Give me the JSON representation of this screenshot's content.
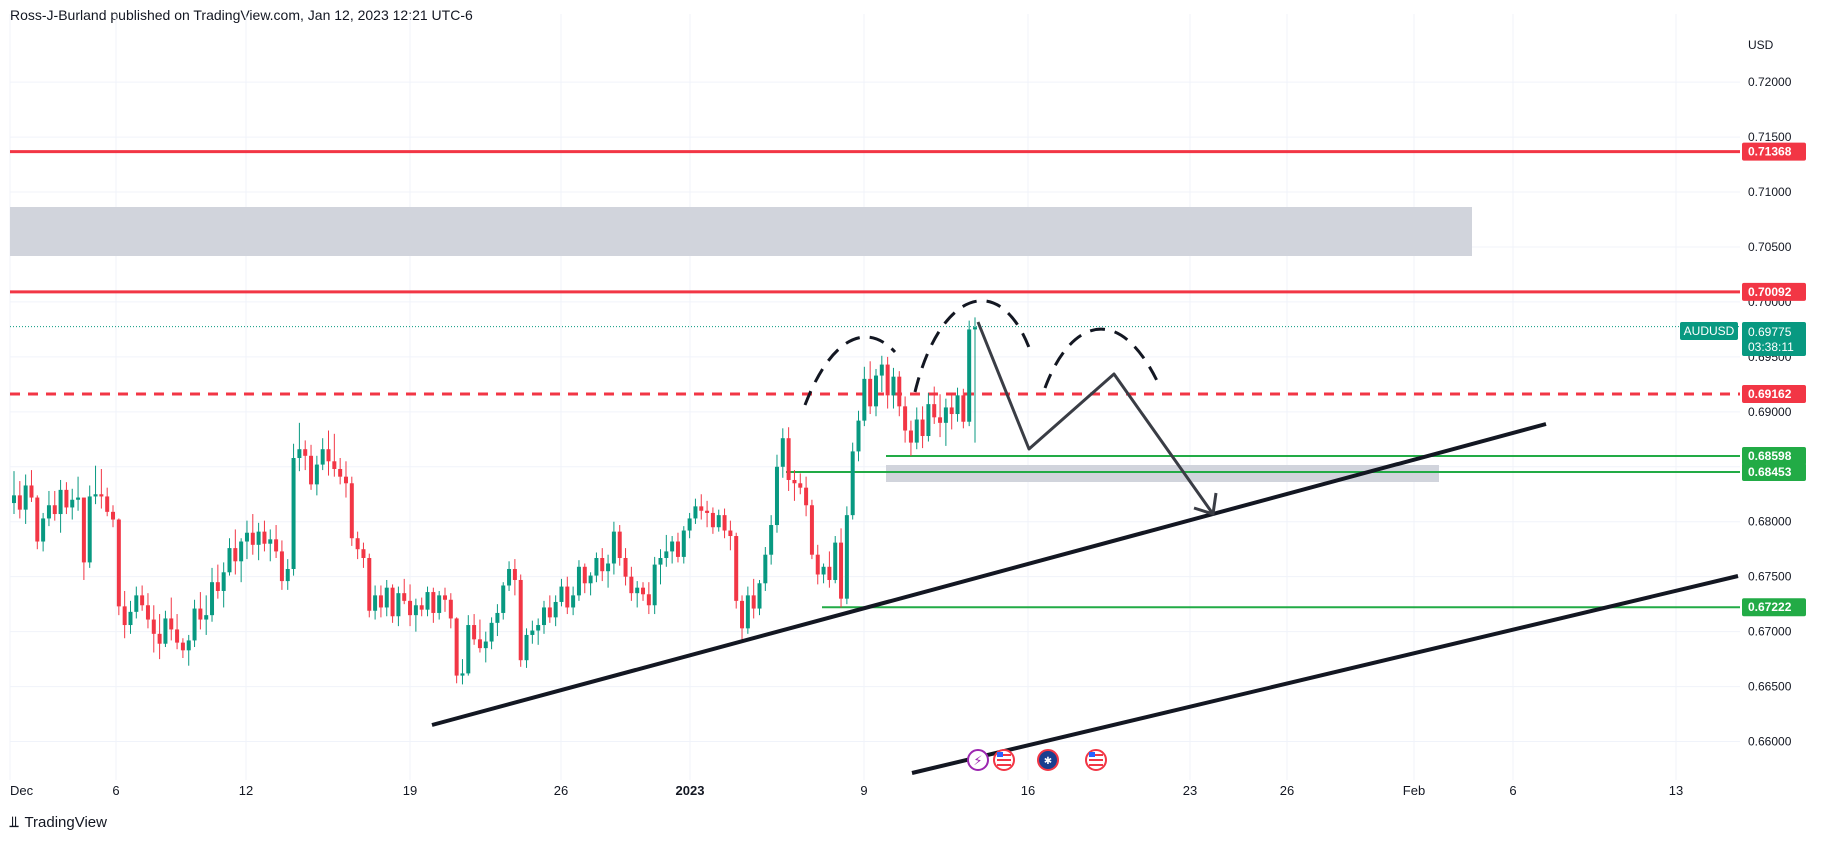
{
  "header": {
    "published_line": "Ross-J-Burland published on TradingView.com, Jan 12, 2023 12:21 UTC-6"
  },
  "footer": {
    "brand": "TradingView",
    "logo_glyph": "⫫"
  },
  "colors": {
    "bull": "#089981",
    "bear": "#f23645",
    "resistance": "#f23645",
    "support": "#22ab46",
    "zone": "#d1d4dc",
    "drawing": "#131722",
    "grid": "#f0f3fa"
  },
  "chart_data": {
    "type": "candlestick",
    "symbol": "AUDUSD",
    "currency": "USD",
    "timeframe_note": "4H candles",
    "x_tick_labels": [
      "Dec",
      "6",
      "12",
      "19",
      "26",
      "2023",
      "9",
      "16",
      "23",
      "26",
      "Feb",
      "6",
      "13"
    ],
    "y_tick_labels": [
      "0.72000",
      "0.71500",
      "0.71000",
      "0.70500",
      "0.70000",
      "0.69500",
      "0.69000",
      "0.68500",
      "0.68000",
      "0.67500",
      "0.67000",
      "0.66500",
      "0.66000"
    ],
    "ylim": [
      0.6565,
      0.7262
    ],
    "last_price": {
      "symbol": "AUDUSD",
      "value": "0.69775",
      "countdown": "03:38:11"
    },
    "horizontal_levels": [
      {
        "label": "0.71368",
        "value": 0.71368,
        "style": "solid",
        "color": "#f23645"
      },
      {
        "label": "0.70092",
        "value": 0.70092,
        "style": "solid",
        "color": "#f23645"
      },
      {
        "label": "0.69162",
        "value": 0.69162,
        "style": "dashed",
        "color": "#f23645"
      },
      {
        "label": "0.68598",
        "value": 0.68598,
        "style": "solid",
        "color": "#22ab46"
      },
      {
        "label": "0.68453",
        "value": 0.68453,
        "style": "solid",
        "color": "#22ab46"
      },
      {
        "label": "0.67222",
        "value": 0.67222,
        "style": "solid",
        "color": "#22ab46"
      }
    ],
    "candles": [
      [
        0.6817,
        0.6846,
        0.6807,
        0.6824
      ],
      [
        0.6824,
        0.6837,
        0.6803,
        0.6811
      ],
      [
        0.6811,
        0.6843,
        0.6798,
        0.6833
      ],
      [
        0.6833,
        0.6847,
        0.6818,
        0.6822
      ],
      [
        0.6822,
        0.6824,
        0.6775,
        0.6782
      ],
      [
        0.6782,
        0.6808,
        0.6773,
        0.6803
      ],
      [
        0.6803,
        0.6828,
        0.6796,
        0.6815
      ],
      [
        0.6815,
        0.6828,
        0.6801,
        0.6807
      ],
      [
        0.6807,
        0.6838,
        0.679,
        0.6829
      ],
      [
        0.6829,
        0.6836,
        0.6807,
        0.6813
      ],
      [
        0.6813,
        0.683,
        0.6802,
        0.682
      ],
      [
        0.682,
        0.6841,
        0.681,
        0.6822
      ],
      [
        0.6822,
        0.6822,
        0.6747,
        0.6763
      ],
      [
        0.6763,
        0.6833,
        0.6758,
        0.6823
      ],
      [
        0.6823,
        0.6851,
        0.6816,
        0.6825
      ],
      [
        0.6825,
        0.6848,
        0.6812,
        0.6823
      ],
      [
        0.6823,
        0.6831,
        0.6805,
        0.6809
      ],
      [
        0.6809,
        0.6815,
        0.6795,
        0.6802
      ],
      [
        0.6802,
        0.6803,
        0.6715,
        0.6723
      ],
      [
        0.6723,
        0.6737,
        0.6694,
        0.6706
      ],
      [
        0.6706,
        0.6728,
        0.6698,
        0.6718
      ],
      [
        0.6718,
        0.6741,
        0.6712,
        0.6733
      ],
      [
        0.6733,
        0.6742,
        0.6719,
        0.6724
      ],
      [
        0.6724,
        0.6735,
        0.6703,
        0.6711
      ],
      [
        0.6711,
        0.6724,
        0.6681,
        0.6698
      ],
      [
        0.6698,
        0.6716,
        0.6675,
        0.6689
      ],
      [
        0.6689,
        0.6719,
        0.6686,
        0.6712
      ],
      [
        0.6712,
        0.6731,
        0.6692,
        0.6702
      ],
      [
        0.6702,
        0.6716,
        0.6684,
        0.669
      ],
      [
        0.669,
        0.6694,
        0.6676,
        0.6683
      ],
      [
        0.6683,
        0.6697,
        0.6669,
        0.6692
      ],
      [
        0.6692,
        0.6729,
        0.6686,
        0.6721
      ],
      [
        0.6721,
        0.6736,
        0.6702,
        0.6711
      ],
      [
        0.6711,
        0.6733,
        0.6697,
        0.6715
      ],
      [
        0.6715,
        0.6758,
        0.6709,
        0.6745
      ],
      [
        0.6745,
        0.6761,
        0.673,
        0.6737
      ],
      [
        0.6737,
        0.6763,
        0.6722,
        0.6754
      ],
      [
        0.6754,
        0.6785,
        0.6751,
        0.6776
      ],
      [
        0.6776,
        0.6793,
        0.6752,
        0.6764
      ],
      [
        0.6764,
        0.6785,
        0.6745,
        0.6782
      ],
      [
        0.6782,
        0.6801,
        0.6766,
        0.679
      ],
      [
        0.679,
        0.6807,
        0.677,
        0.6779
      ],
      [
        0.6779,
        0.6799,
        0.6765,
        0.6791
      ],
      [
        0.6791,
        0.6801,
        0.6773,
        0.678
      ],
      [
        0.678,
        0.6793,
        0.6764,
        0.6784
      ],
      [
        0.6784,
        0.6797,
        0.6767,
        0.6773
      ],
      [
        0.6773,
        0.6783,
        0.6738,
        0.6746
      ],
      [
        0.6746,
        0.6766,
        0.6738,
        0.6757
      ],
      [
        0.6757,
        0.6871,
        0.6751,
        0.6858
      ],
      [
        0.6858,
        0.689,
        0.6846,
        0.6866
      ],
      [
        0.6866,
        0.6874,
        0.6847,
        0.686
      ],
      [
        0.686,
        0.687,
        0.6829,
        0.6834
      ],
      [
        0.6834,
        0.686,
        0.6824,
        0.6852
      ],
      [
        0.6852,
        0.6876,
        0.6847,
        0.6866
      ],
      [
        0.6866,
        0.6883,
        0.6842,
        0.6855
      ],
      [
        0.6855,
        0.688,
        0.6841,
        0.6848
      ],
      [
        0.6848,
        0.6858,
        0.6834,
        0.6841
      ],
      [
        0.6841,
        0.6855,
        0.6822,
        0.6835
      ],
      [
        0.6835,
        0.6841,
        0.6778,
        0.6785
      ],
      [
        0.6785,
        0.6791,
        0.6766,
        0.6775
      ],
      [
        0.6775,
        0.6781,
        0.6758,
        0.6767
      ],
      [
        0.6767,
        0.6771,
        0.6713,
        0.6719
      ],
      [
        0.6719,
        0.6742,
        0.6711,
        0.6733
      ],
      [
        0.6733,
        0.6742,
        0.6713,
        0.6722
      ],
      [
        0.6722,
        0.6747,
        0.6714,
        0.674
      ],
      [
        0.674,
        0.6743,
        0.6708,
        0.6714
      ],
      [
        0.6714,
        0.6741,
        0.6705,
        0.6735
      ],
      [
        0.6735,
        0.6748,
        0.6725,
        0.6728
      ],
      [
        0.6728,
        0.6743,
        0.6705,
        0.6715
      ],
      [
        0.6715,
        0.673,
        0.67,
        0.6724
      ],
      [
        0.6724,
        0.6731,
        0.6714,
        0.672
      ],
      [
        0.672,
        0.6741,
        0.6714,
        0.6736
      ],
      [
        0.6736,
        0.674,
        0.6708,
        0.6717
      ],
      [
        0.6717,
        0.6737,
        0.6711,
        0.6733
      ],
      [
        0.6733,
        0.674,
        0.6718,
        0.6729
      ],
      [
        0.6729,
        0.6735,
        0.6703,
        0.6712
      ],
      [
        0.6712,
        0.6713,
        0.6653,
        0.666
      ],
      [
        0.666,
        0.6675,
        0.6652,
        0.6662
      ],
      [
        0.6662,
        0.6715,
        0.666,
        0.6706
      ],
      [
        0.6706,
        0.6716,
        0.6688,
        0.6693
      ],
      [
        0.6693,
        0.6711,
        0.6681,
        0.6685
      ],
      [
        0.6685,
        0.67,
        0.6672,
        0.6691
      ],
      [
        0.6691,
        0.6713,
        0.6684,
        0.6708
      ],
      [
        0.6708,
        0.6725,
        0.6696,
        0.6717
      ],
      [
        0.6717,
        0.6745,
        0.6711,
        0.6742
      ],
      [
        0.6742,
        0.6764,
        0.6737,
        0.6757
      ],
      [
        0.6757,
        0.6766,
        0.6733,
        0.6747
      ],
      [
        0.6747,
        0.6752,
        0.6668,
        0.6674
      ],
      [
        0.6674,
        0.6703,
        0.6667,
        0.6697
      ],
      [
        0.6697,
        0.671,
        0.6689,
        0.6701
      ],
      [
        0.6701,
        0.6712,
        0.6688,
        0.6706
      ],
      [
        0.6706,
        0.6728,
        0.6698,
        0.6722
      ],
      [
        0.6722,
        0.6733,
        0.6708,
        0.6713
      ],
      [
        0.6713,
        0.6733,
        0.6705,
        0.6727
      ],
      [
        0.6727,
        0.6748,
        0.6723,
        0.6741
      ],
      [
        0.6741,
        0.675,
        0.6716,
        0.6722
      ],
      [
        0.6722,
        0.6741,
        0.6715,
        0.6733
      ],
      [
        0.6733,
        0.6765,
        0.6728,
        0.6759
      ],
      [
        0.6759,
        0.6762,
        0.6735,
        0.6744
      ],
      [
        0.6744,
        0.6754,
        0.6733,
        0.6751
      ],
      [
        0.6751,
        0.6772,
        0.6745,
        0.6767
      ],
      [
        0.6767,
        0.6776,
        0.6746,
        0.6755
      ],
      [
        0.6755,
        0.677,
        0.674,
        0.6762
      ],
      [
        0.6762,
        0.68,
        0.6752,
        0.6791
      ],
      [
        0.6791,
        0.6797,
        0.676,
        0.6767
      ],
      [
        0.6767,
        0.6776,
        0.6742,
        0.675
      ],
      [
        0.675,
        0.6759,
        0.6728,
        0.6735
      ],
      [
        0.6735,
        0.6746,
        0.6722,
        0.674
      ],
      [
        0.674,
        0.6745,
        0.6728,
        0.6734
      ],
      [
        0.6734,
        0.6745,
        0.6716,
        0.6724
      ],
      [
        0.6724,
        0.6768,
        0.6716,
        0.6761
      ],
      [
        0.6761,
        0.6775,
        0.6743,
        0.6767
      ],
      [
        0.6767,
        0.6788,
        0.6759,
        0.6773
      ],
      [
        0.6773,
        0.6787,
        0.6762,
        0.6782
      ],
      [
        0.6782,
        0.679,
        0.6763,
        0.6768
      ],
      [
        0.6768,
        0.6796,
        0.6762,
        0.6792
      ],
      [
        0.6792,
        0.6808,
        0.6785,
        0.6803
      ],
      [
        0.6803,
        0.6821,
        0.6798,
        0.6814
      ],
      [
        0.6814,
        0.6825,
        0.6802,
        0.681
      ],
      [
        0.681,
        0.6819,
        0.6795,
        0.6808
      ],
      [
        0.6808,
        0.6813,
        0.6789,
        0.6795
      ],
      [
        0.6795,
        0.6811,
        0.6791,
        0.6806
      ],
      [
        0.6806,
        0.6812,
        0.6785,
        0.6792
      ],
      [
        0.6792,
        0.6801,
        0.6774,
        0.6787
      ],
      [
        0.6787,
        0.679,
        0.6721,
        0.6728
      ],
      [
        0.6728,
        0.6733,
        0.669,
        0.6703
      ],
      [
        0.6703,
        0.6741,
        0.6698,
        0.6733
      ],
      [
        0.6733,
        0.6748,
        0.6712,
        0.6721
      ],
      [
        0.6721,
        0.6747,
        0.6715,
        0.6744
      ],
      [
        0.6744,
        0.6777,
        0.6737,
        0.677
      ],
      [
        0.677,
        0.6806,
        0.6761,
        0.6797
      ],
      [
        0.6797,
        0.6861,
        0.679,
        0.685
      ],
      [
        0.685,
        0.6885,
        0.684,
        0.6876
      ],
      [
        0.6876,
        0.6886,
        0.6828,
        0.6838
      ],
      [
        0.6838,
        0.6847,
        0.6819,
        0.6835
      ],
      [
        0.6835,
        0.6844,
        0.6825,
        0.6831
      ],
      [
        0.6831,
        0.6841,
        0.6805,
        0.6815
      ],
      [
        0.6815,
        0.682,
        0.6766,
        0.677
      ],
      [
        0.677,
        0.6779,
        0.6743,
        0.6752
      ],
      [
        0.6752,
        0.6762,
        0.6744,
        0.6759
      ],
      [
        0.6759,
        0.6773,
        0.674,
        0.6747
      ],
      [
        0.6747,
        0.6787,
        0.6744,
        0.6781
      ],
      [
        0.6781,
        0.6794,
        0.6722,
        0.673
      ],
      [
        0.673,
        0.6814,
        0.6725,
        0.6806
      ],
      [
        0.6806,
        0.6872,
        0.6802,
        0.6864
      ],
      [
        0.6864,
        0.6901,
        0.6855,
        0.6892
      ],
      [
        0.6892,
        0.6941,
        0.6887,
        0.693
      ],
      [
        0.693,
        0.6946,
        0.6898,
        0.6905
      ],
      [
        0.6905,
        0.6939,
        0.6896,
        0.6933
      ],
      [
        0.6933,
        0.6951,
        0.6918,
        0.6943
      ],
      [
        0.6943,
        0.695,
        0.6903,
        0.6915
      ],
      [
        0.6915,
        0.694,
        0.6903,
        0.6932
      ],
      [
        0.6932,
        0.6937,
        0.6896,
        0.6905
      ],
      [
        0.6905,
        0.6914,
        0.6872,
        0.6883
      ],
      [
        0.6883,
        0.6892,
        0.686,
        0.6872
      ],
      [
        0.6872,
        0.6904,
        0.6866,
        0.6893
      ],
      [
        0.6893,
        0.6905,
        0.6867,
        0.6878
      ],
      [
        0.6878,
        0.6917,
        0.6873,
        0.6907
      ],
      [
        0.6907,
        0.6923,
        0.6889,
        0.6895
      ],
      [
        0.6895,
        0.6916,
        0.6877,
        0.689
      ],
      [
        0.689,
        0.6912,
        0.6869,
        0.6904
      ],
      [
        0.6904,
        0.6917,
        0.6884,
        0.6898
      ],
      [
        0.6898,
        0.6922,
        0.6891,
        0.6915
      ],
      [
        0.6915,
        0.6921,
        0.6885,
        0.6891
      ],
      [
        0.6891,
        0.6983,
        0.6887,
        0.6975
      ],
      [
        0.6975,
        0.6986,
        0.6872,
        0.6977
      ]
    ]
  }
}
